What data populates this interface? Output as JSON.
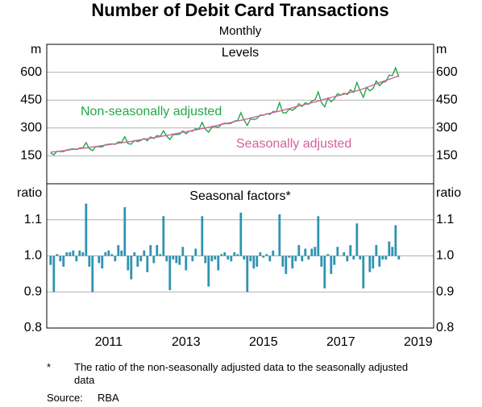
{
  "title": "Number of Debit Card Transactions",
  "subtitle": "Monthly",
  "notes": {
    "footnote_marker": "*",
    "footnote": "The ratio of the non-seasonally adjusted data to the seasonally adjusted data",
    "source_label": "Source:",
    "source": "RBA"
  },
  "chart_data": [
    {
      "type": "line",
      "title": "Levels",
      "y_label": "m",
      "xlim": [
        2009.9,
        2019.9
      ],
      "ylim": [
        0,
        750
      ],
      "yticks": [
        150,
        300,
        450,
        600
      ],
      "grid": true,
      "x": [
        2010,
        2010.083,
        2010.167,
        2010.25,
        2010.333,
        2010.417,
        2010.5,
        2010.583,
        2010.667,
        2010.75,
        2010.833,
        2010.917,
        2011,
        2011.083,
        2011.167,
        2011.25,
        2011.333,
        2011.417,
        2011.5,
        2011.583,
        2011.667,
        2011.75,
        2011.833,
        2011.917,
        2012,
        2012.083,
        2012.167,
        2012.25,
        2012.333,
        2012.417,
        2012.5,
        2012.583,
        2012.667,
        2012.75,
        2012.833,
        2012.917,
        2013,
        2013.083,
        2013.167,
        2013.25,
        2013.333,
        2013.417,
        2013.5,
        2013.583,
        2013.667,
        2013.75,
        2013.833,
        2013.917,
        2014,
        2014.083,
        2014.167,
        2014.25,
        2014.333,
        2014.417,
        2014.5,
        2014.583,
        2014.667,
        2014.75,
        2014.833,
        2014.917,
        2015,
        2015.083,
        2015.167,
        2015.25,
        2015.333,
        2015.417,
        2015.5,
        2015.583,
        2015.667,
        2015.75,
        2015.833,
        2015.917,
        2016,
        2016.083,
        2016.167,
        2016.25,
        2016.333,
        2016.417,
        2016.5,
        2016.583,
        2016.667,
        2016.75,
        2016.833,
        2016.917,
        2017,
        2017.083,
        2017.167,
        2017.25,
        2017.333,
        2017.417,
        2017.5,
        2017.583,
        2017.667,
        2017.75,
        2017.833,
        2017.917,
        2018,
        2018.083,
        2018.167,
        2018.25,
        2018.333,
        2018.417,
        2018.5,
        2018.583,
        2018.667,
        2018.75,
        2018.833,
        2018.917,
        2019
      ],
      "series": [
        {
          "name": "Non-seasonally adjusted",
          "color": "#22a84a",
          "values": [
            166,
            155,
            175,
            173,
            173,
            182,
            185,
            188,
            184,
            192,
            193,
            221,
            189,
            178,
            200,
            199,
            198,
            210,
            213,
            214,
            212,
            225,
            223,
            253,
            216,
            213,
            233,
            227,
            233,
            244,
            231,
            252,
            243,
            259,
            255,
            285,
            256,
            238,
            264,
            265,
            266,
            284,
            269,
            283,
            283,
            296,
            293,
            330,
            294,
            278,
            303,
            308,
            302,
            321,
            326,
            323,
            325,
            337,
            340,
            382,
            342,
            314,
            349,
            345,
            351,
            370,
            368,
            377,
            373,
            389,
            387,
            436,
            383,
            380,
            402,
            395,
            407,
            431,
            416,
            436,
            427,
            445,
            451,
            494,
            437,
            414,
            461,
            441,
            456,
            485,
            477,
            487,
            480,
            506,
            491,
            545,
            500,
            465,
            518,
            500,
            512,
            553,
            527,
            545,
            550,
            584,
            582,
            624,
            574
          ]
        },
        {
          "name": "Seasonally adjusted",
          "color": "#d4609c",
          "values": [
            170,
            172,
            174,
            176,
            178,
            180,
            183,
            185,
            187,
            189,
            191,
            193,
            195,
            198,
            200,
            203,
            205,
            208,
            210,
            213,
            215,
            218,
            220,
            223,
            225,
            228,
            231,
            234,
            237,
            240,
            242,
            245,
            248,
            251,
            254,
            257,
            260,
            263,
            267,
            270,
            273,
            277,
            280,
            283,
            287,
            290,
            293,
            297,
            300,
            304,
            308,
            311,
            315,
            319,
            323,
            326,
            330,
            334,
            338,
            341,
            345,
            349,
            354,
            358,
            362,
            366,
            370,
            375,
            379,
            383,
            387,
            391,
            395,
            400,
            404,
            409,
            413,
            418,
            422,
            427,
            431,
            436,
            440,
            445,
            450,
            455,
            459,
            464,
            468,
            473,
            477,
            482,
            487,
            491,
            496,
            500,
            505,
            511,
            518,
            524,
            531,
            537,
            543,
            550,
            556,
            562,
            568,
            575,
            580
          ]
        }
      ]
    },
    {
      "type": "bar",
      "title": "Seasonal factors*",
      "y_label": "ratio",
      "xlim": [
        2009.9,
        2019.9
      ],
      "xticks": [
        {
          "value": 2011.5,
          "label": "2011"
        },
        {
          "value": 2013.5,
          "label": "2013"
        },
        {
          "value": 2015.5,
          "label": "2015"
        },
        {
          "value": 2017.5,
          "label": "2017"
        },
        {
          "value": 2019.5,
          "label": "2019"
        }
      ],
      "ylim": [
        0.8,
        1.2
      ],
      "yticks": [
        {
          "value": 0.8,
          "label": "0.8"
        },
        {
          "value": 0.9,
          "label": "0.9"
        },
        {
          "value": 1,
          "label": "1.0"
        },
        {
          "value": 1.1,
          "label": "1.1"
        }
      ],
      "grid": true,
      "baseline": 1,
      "color": "#2e93b1",
      "x": [
        2010,
        2010.083,
        2010.167,
        2010.25,
        2010.333,
        2010.417,
        2010.5,
        2010.583,
        2010.667,
        2010.75,
        2010.833,
        2010.917,
        2011,
        2011.083,
        2011.167,
        2011.25,
        2011.333,
        2011.417,
        2011.5,
        2011.583,
        2011.667,
        2011.75,
        2011.833,
        2011.917,
        2012,
        2012.083,
        2012.167,
        2012.25,
        2012.333,
        2012.417,
        2012.5,
        2012.583,
        2012.667,
        2012.75,
        2012.833,
        2012.917,
        2013,
        2013.083,
        2013.167,
        2013.25,
        2013.333,
        2013.417,
        2013.5,
        2013.583,
        2013.667,
        2013.75,
        2013.833,
        2013.917,
        2014,
        2014.083,
        2014.167,
        2014.25,
        2014.333,
        2014.417,
        2014.5,
        2014.583,
        2014.667,
        2014.75,
        2014.833,
        2014.917,
        2015,
        2015.083,
        2015.167,
        2015.25,
        2015.333,
        2015.417,
        2015.5,
        2015.583,
        2015.667,
        2015.75,
        2015.833,
        2015.917,
        2016,
        2016.083,
        2016.167,
        2016.25,
        2016.333,
        2016.417,
        2016.5,
        2016.583,
        2016.667,
        2016.75,
        2016.833,
        2016.917,
        2017,
        2017.083,
        2017.167,
        2017.25,
        2017.333,
        2017.417,
        2017.5,
        2017.583,
        2017.667,
        2017.75,
        2017.833,
        2017.917,
        2018,
        2018.083,
        2018.167,
        2018.25,
        2018.333,
        2018.417,
        2018.5,
        2018.583,
        2018.667,
        2018.75,
        2018.833,
        2018.917,
        2019
      ],
      "values": [
        0.975,
        0.9,
        1.005,
        0.985,
        0.97,
        1.01,
        1.01,
        1.015,
        0.985,
        1.015,
        1.01,
        1.145,
        0.97,
        0.9,
        1,
        0.98,
        0.965,
        1.01,
        1.015,
        1.005,
        0.985,
        1.03,
        1.015,
        1.135,
        0.96,
        0.935,
        1.01,
        0.97,
        0.985,
        1.015,
        0.955,
        1.03,
        0.98,
        1.03,
        1.005,
        1.11,
        0.985,
        0.905,
        0.99,
        0.98,
        0.975,
        1.025,
        0.96,
        1,
        0.985,
        1.02,
        1,
        1.11,
        0.98,
        0.915,
        0.985,
        0.99,
        0.96,
        1.005,
        1.01,
        0.99,
        0.985,
        1.01,
        1.005,
        1.12,
        0.99,
        0.9,
        0.985,
        0.965,
        0.97,
        1.01,
        0.995,
        1.005,
        0.985,
        1.015,
        1,
        1.115,
        0.97,
        0.95,
        0.995,
        0.965,
        0.985,
        1.03,
        0.985,
        1.02,
        0.99,
        1.02,
        1.025,
        1.11,
        0.97,
        0.91,
        1.005,
        0.95,
        0.975,
        1.025,
        1,
        1.01,
        0.985,
        1.03,
        0.99,
        1.09,
        0.99,
        0.91,
        1,
        0.955,
        0.965,
        1.03,
        0.97,
        0.99,
        0.99,
        1.04,
        1.025,
        1.085,
        0.99
      ]
    }
  ]
}
